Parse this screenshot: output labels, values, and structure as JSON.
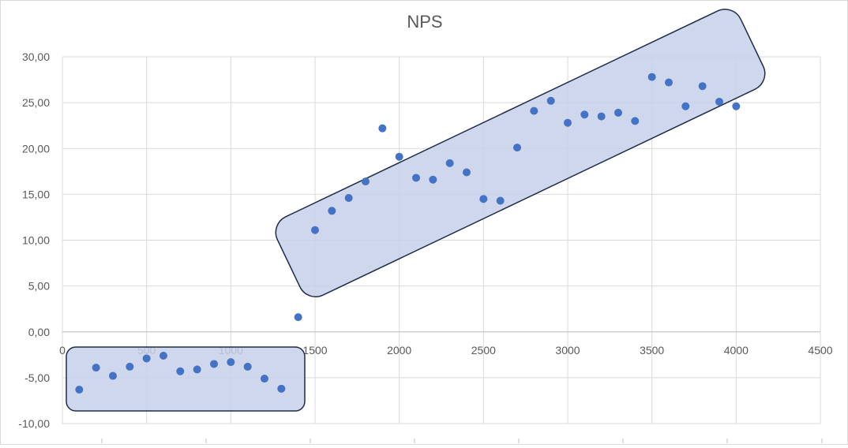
{
  "chart_data": {
    "type": "scatter",
    "title": "NPS",
    "xlim": [
      0,
      4500
    ],
    "ylim": [
      -10,
      30
    ],
    "x_ticks": [
      "0",
      "500",
      "1000",
      "1500",
      "2000",
      "2500",
      "3000",
      "3500",
      "4000",
      "4500"
    ],
    "y_ticks": [
      "30,00",
      "25,00",
      "20,00",
      "15,00",
      "10,00",
      "5,00",
      "0,00",
      "-5,00",
      "-10,00"
    ],
    "x_tick_values": [
      0,
      500,
      1000,
      1500,
      2000,
      2500,
      3000,
      3500,
      4000,
      4500
    ],
    "y_tick_values": [
      30,
      25,
      20,
      15,
      10,
      5,
      0,
      -5,
      -10
    ],
    "grid": true,
    "marker_color": "#4472c4",
    "highlight_fill": "#c5d0e9",
    "highlight_stroke": "#1f2d4a",
    "points": [
      {
        "x": 100,
        "y": -6.3
      },
      {
        "x": 200,
        "y": -3.9
      },
      {
        "x": 300,
        "y": -4.8
      },
      {
        "x": 400,
        "y": -3.8
      },
      {
        "x": 500,
        "y": -2.9
      },
      {
        "x": 600,
        "y": -2.6
      },
      {
        "x": 700,
        "y": -4.3
      },
      {
        "x": 800,
        "y": -4.1
      },
      {
        "x": 900,
        "y": -3.5
      },
      {
        "x": 1000,
        "y": -3.3
      },
      {
        "x": 1100,
        "y": -3.8
      },
      {
        "x": 1200,
        "y": -5.1
      },
      {
        "x": 1300,
        "y": -6.2
      },
      {
        "x": 1400,
        "y": 1.6
      },
      {
        "x": 1500,
        "y": 11.1
      },
      {
        "x": 1600,
        "y": 13.2
      },
      {
        "x": 1700,
        "y": 14.6
      },
      {
        "x": 1800,
        "y": 16.4
      },
      {
        "x": 1900,
        "y": 22.2
      },
      {
        "x": 2000,
        "y": 19.1
      },
      {
        "x": 2100,
        "y": 16.8
      },
      {
        "x": 2200,
        "y": 16.6
      },
      {
        "x": 2300,
        "y": 18.4
      },
      {
        "x": 2400,
        "y": 17.4
      },
      {
        "x": 2500,
        "y": 14.5
      },
      {
        "x": 2600,
        "y": 14.3
      },
      {
        "x": 2700,
        "y": 20.1
      },
      {
        "x": 2800,
        "y": 24.1
      },
      {
        "x": 2900,
        "y": 25.2
      },
      {
        "x": 3000,
        "y": 22.8
      },
      {
        "x": 3100,
        "y": 23.7
      },
      {
        "x": 3200,
        "y": 23.5
      },
      {
        "x": 3300,
        "y": 23.9
      },
      {
        "x": 3400,
        "y": 23.0
      },
      {
        "x": 3500,
        "y": 27.8
      },
      {
        "x": 3600,
        "y": 27.2
      },
      {
        "x": 3700,
        "y": 24.6
      },
      {
        "x": 3800,
        "y": 26.8
      },
      {
        "x": 3900,
        "y": 25.1
      },
      {
        "x": 4000,
        "y": 24.6
      }
    ]
  }
}
